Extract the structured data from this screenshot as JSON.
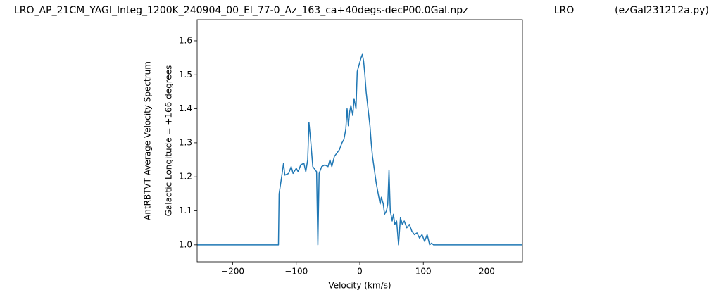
{
  "chart_data": {
    "type": "line",
    "title": "LRO_AP_21CM_YAGI_Integ_1200K_240904_00_El_77-0_Az_163_ca+40degs-decP00.0Gal.npz",
    "center_title": "LRO",
    "right_title": "(ezGal231212a.py)",
    "xlabel": "Velocity (km/s)",
    "ylabel_lines": [
      "AntRBTVT Average Velocity Spectrum",
      "Galactic Longitude = +166 degrees"
    ],
    "xlim": [
      -256,
      256
    ],
    "ylim": [
      0.95,
      1.662
    ],
    "xticks": [
      {
        "value": -200,
        "label": "−200"
      },
      {
        "value": -100,
        "label": "−100"
      },
      0,
      100,
      200
    ],
    "yticks": [
      {
        "value": 1.0,
        "label": "1.0"
      },
      1.1,
      1.2,
      1.3,
      1.4,
      1.5,
      1.6
    ],
    "x": [
      -256,
      -128,
      -127,
      -123,
      -120,
      -118,
      -112,
      -108,
      -105,
      -100,
      -97,
      -93,
      -88,
      -85,
      -82,
      -80,
      -77,
      -74,
      -70,
      -68,
      -66,
      -64,
      -60,
      -55,
      -50,
      -47,
      -44,
      -40,
      -36,
      -32,
      -28,
      -25,
      -22,
      -20,
      -18,
      -16,
      -14,
      -11,
      -9,
      -6,
      -4,
      -1,
      2,
      4,
      6,
      8,
      10,
      13,
      16,
      18,
      20,
      23,
      26,
      29,
      32,
      34,
      37,
      39,
      42,
      44,
      46,
      48,
      51,
      53,
      55,
      58,
      61,
      64,
      67,
      70,
      74,
      78,
      82,
      86,
      90,
      94,
      98,
      102,
      106,
      110,
      113,
      116,
      256
    ],
    "series": [
      {
        "color": "#1f77b4",
        "values": [
          1.0,
          1.0,
          1.15,
          1.2,
          1.24,
          1.205,
          1.21,
          1.23,
          1.21,
          1.225,
          1.215,
          1.235,
          1.24,
          1.215,
          1.25,
          1.36,
          1.3,
          1.23,
          1.22,
          1.215,
          1.0,
          1.21,
          1.23,
          1.235,
          1.23,
          1.25,
          1.23,
          1.26,
          1.27,
          1.28,
          1.3,
          1.31,
          1.34,
          1.4,
          1.35,
          1.39,
          1.41,
          1.38,
          1.43,
          1.4,
          1.51,
          1.53,
          1.55,
          1.56,
          1.54,
          1.5,
          1.45,
          1.4,
          1.35,
          1.3,
          1.26,
          1.22,
          1.18,
          1.15,
          1.12,
          1.14,
          1.12,
          1.09,
          1.1,
          1.12,
          1.22,
          1.1,
          1.07,
          1.09,
          1.06,
          1.07,
          1.0,
          1.08,
          1.06,
          1.07,
          1.05,
          1.06,
          1.04,
          1.03,
          1.035,
          1.02,
          1.03,
          1.01,
          1.03,
          1.0,
          1.005,
          1.0,
          1.0
        ]
      }
    ]
  }
}
